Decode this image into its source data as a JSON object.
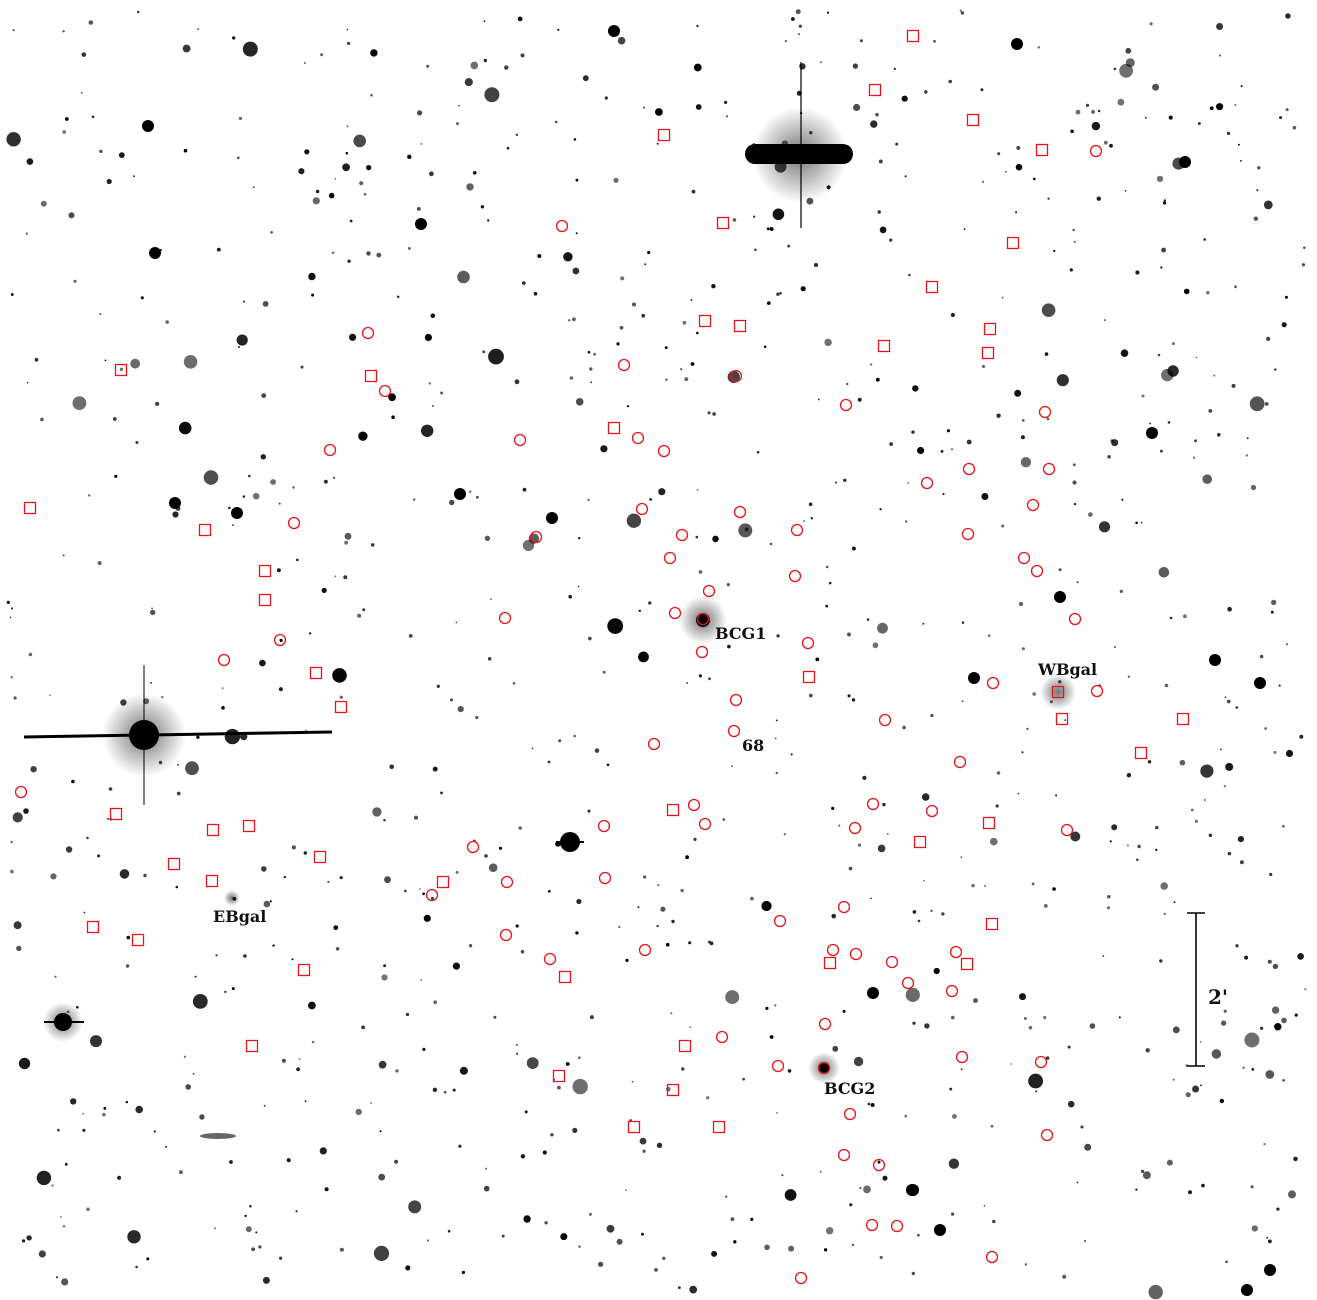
{
  "labels": {
    "bcg1": "BCG1",
    "bcg2": "BCG2",
    "wbgal": "WBgal",
    "ebgal": "EBgal",
    "member68": "68",
    "scale": "2'"
  },
  "colors": {
    "background": "#ffffff",
    "stars": "#000000",
    "markers": "#e8141a",
    "labels": "#111111"
  },
  "marker_shapes": [
    "circle",
    "square"
  ]
}
